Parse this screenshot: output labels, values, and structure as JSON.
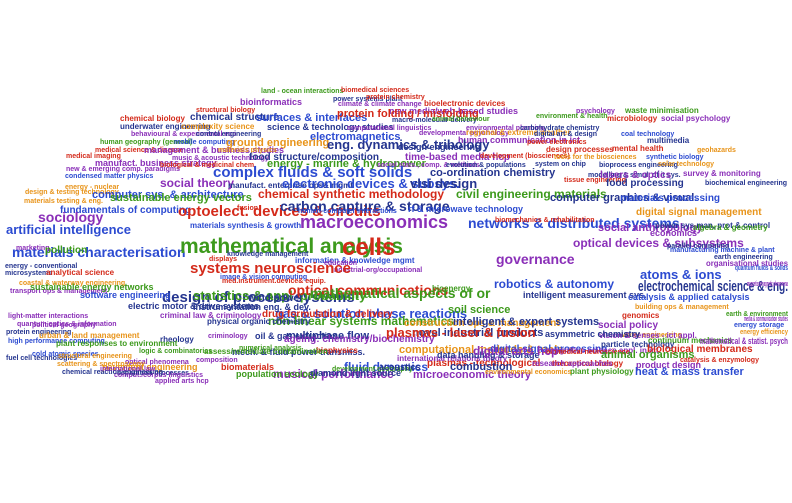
{
  "palette": {
    "blue": "#2c4bd1",
    "red": "#d42a1a",
    "purple": "#8a2fb8",
    "green": "#3d9a1c",
    "orange": "#e8941a",
    "navy": "#25358f"
  },
  "words": [
    {
      "text": "land - ocean interactions",
      "color": "green"
    },
    {
      "text": "power systems plant",
      "color": "navy"
    },
    {
      "text": "biomedical sciences",
      "color": "red"
    },
    {
      "text": "protein chemistry",
      "color": "red"
    },
    {
      "text": "bioinformatics",
      "color": "purple"
    },
    {
      "text": "climate & climate change",
      "color": "purple"
    },
    {
      "text": "bioelectronic devices",
      "color": "red"
    },
    {
      "text": "structural biology",
      "color": "red"
    },
    {
      "text": "new media/web-based studies",
      "color": "purple"
    },
    {
      "text": "psychology",
      "color": "purple"
    },
    {
      "text": "waste minimisation",
      "color": "green"
    },
    {
      "text": "chemical biology",
      "color": "red"
    },
    {
      "text": "chemical structure",
      "color": "navy"
    },
    {
      "text": "surfaces & interfaces",
      "color": "blue"
    },
    {
      "text": "protein folding / misfolding",
      "color": "red"
    },
    {
      "text": "macro-molecular delivery",
      "color": "navy"
    },
    {
      "text": "animal behaviour",
      "color": "green"
    },
    {
      "text": "environment & health",
      "color": "green"
    },
    {
      "text": "microbiology",
      "color": "red"
    },
    {
      "text": "social psychology",
      "color": "purple"
    },
    {
      "text": "underwater engineering",
      "color": "navy"
    },
    {
      "text": "complexity science",
      "color": "orange"
    },
    {
      "text": "science & technology studies",
      "color": "navy"
    },
    {
      "text": "computational linguistics",
      "color": "purple"
    },
    {
      "text": "environmental planning",
      "color": "purple"
    },
    {
      "text": "carbohydrate chemistry",
      "color": "navy"
    },
    {
      "text": "behavioural & experimental eco",
      "color": "purple"
    },
    {
      "text": "control engineering",
      "color": "navy"
    },
    {
      "text": "electromagnetics",
      "color": "blue"
    },
    {
      "text": "developmental psychology",
      "color": "purple"
    },
    {
      "text": "regional & extreme weather",
      "color": "orange"
    },
    {
      "text": "digital art & design",
      "color": "navy"
    },
    {
      "text": "coal technology",
      "color": "blue"
    },
    {
      "text": "human geography (general)",
      "color": "green"
    },
    {
      "text": "mobile computing",
      "color": "blue"
    },
    {
      "text": "ground engineering",
      "color": "orange"
    },
    {
      "text": "human communication in ict",
      "color": "purple"
    },
    {
      "text": "power electronics",
      "color": "red"
    },
    {
      "text": "multimedia",
      "color": "navy"
    },
    {
      "text": "medical science & disease",
      "color": "red"
    },
    {
      "text": "management & business studies",
      "color": "purple"
    },
    {
      "text": "materials physics",
      "color": "orange"
    },
    {
      "text": "design engineering",
      "color": "navy"
    },
    {
      "text": "design processes",
      "color": "red"
    },
    {
      "text": "mental health",
      "color": "red"
    },
    {
      "text": "geohazards",
      "color": "orange"
    },
    {
      "text": "medical imaging",
      "color": "red"
    },
    {
      "text": "eng. dynamics & tribology",
      "color": "navy"
    },
    {
      "text": "time-based media hcp",
      "color": "purple"
    },
    {
      "text": "development (biosciences)",
      "color": "red"
    },
    {
      "text": "tools for the biosciences",
      "color": "orange"
    },
    {
      "text": "synthetic biology",
      "color": "blue"
    },
    {
      "text": "manufact. business strategy",
      "color": "purple"
    },
    {
      "text": "music & acoustic technology",
      "color": "purple"
    },
    {
      "text": "food structure/composition",
      "color": "navy"
    },
    {
      "text": "new & emerging comp. paradigms",
      "color": "purple"
    },
    {
      "text": "biological & medicinal chem.",
      "color": "red"
    },
    {
      "text": "energy - marine & hydropower",
      "color": "green"
    },
    {
      "text": "social stats., comp. & methods",
      "color": "purple"
    },
    {
      "text": "evolution & populations",
      "color": "navy"
    },
    {
      "text": "system on chip",
      "color": "navy"
    },
    {
      "text": "bioprocess engineering",
      "color": "navy"
    },
    {
      "text": "solar technology",
      "color": "orange"
    },
    {
      "text": "condensed matter physics",
      "color": "blue"
    },
    {
      "text": "complex fluids & soft solids",
      "color": "blue"
    },
    {
      "text": "co-ordination chemistry",
      "color": "navy"
    },
    {
      "text": "modelling & simul. of it sys.",
      "color": "navy"
    },
    {
      "text": "energy - nuclear",
      "color": "orange"
    },
    {
      "text": "social theory",
      "color": "purple"
    },
    {
      "text": "manufact. enterprise ops& mgmt",
      "color": "navy"
    },
    {
      "text": "electronic devices & subsys.",
      "color": "blue"
    },
    {
      "text": "vlsi design",
      "color": "navy"
    },
    {
      "text": "tissue engineering",
      "color": "red"
    },
    {
      "text": "lasers & optics",
      "color": "purple"
    },
    {
      "text": "survey & monitoring",
      "color": "purple"
    },
    {
      "text": "design & testing technology",
      "color": "orange"
    },
    {
      "text": "computer sys. & architecture",
      "color": "blue"
    },
    {
      "text": "chemical synthetic methodology",
      "color": "red"
    },
    {
      "text": "civil engineering materials",
      "color": "green"
    },
    {
      "text": "food processing",
      "color": "navy"
    },
    {
      "text": "biochemical engineering",
      "color": "navy"
    },
    {
      "text": "materials testing & eng.",
      "color": "orange"
    },
    {
      "text": "sustainable energy vectors",
      "color": "green"
    },
    {
      "text": "computer graphics & visual.",
      "color": "navy"
    },
    {
      "text": "materials processing",
      "color": "blue"
    },
    {
      "text": "fundamentals of computing",
      "color": "blue"
    },
    {
      "text": "optoelect. devices & circuits",
      "color": "red"
    },
    {
      "text": "carbon capture & storage",
      "color": "navy"
    },
    {
      "text": "rf & microwave technology",
      "color": "blue"
    },
    {
      "text": "digital signal management",
      "color": "orange"
    },
    {
      "text": "sociology",
      "color": "purple"
    },
    {
      "text": "fusion",
      "color": "red"
    },
    {
      "text": "materials synthesis & growth",
      "color": "blue"
    },
    {
      "text": "human-computer interactions",
      "color": "blue"
    },
    {
      "text": "macroeconomics",
      "color": "purple"
    },
    {
      "text": "networks & distributed systems",
      "color": "blue"
    },
    {
      "text": "biomechanics & rehabilitation",
      "color": "red"
    },
    {
      "text": "social anthropology",
      "color": "purple"
    },
    {
      "text": "power sys man, prot & control",
      "color": "navy"
    },
    {
      "text": "algebra & geometry",
      "color": "green"
    },
    {
      "text": "artificial intelligence",
      "color": "blue"
    },
    {
      "text": "economics",
      "color": "purple"
    },
    {
      "text": "materials characterisation",
      "color": "blue"
    },
    {
      "text": "mathematical analysis",
      "color": "green"
    },
    {
      "text": "knowledge management",
      "color": "navy"
    },
    {
      "text": "cells",
      "color": "red"
    },
    {
      "text": "optical devices & subsystems",
      "color": "purple"
    },
    {
      "text": "parallel computing",
      "color": "navy"
    },
    {
      "text": "marketing",
      "color": "purple"
    },
    {
      "text": "pollution",
      "color": "green"
    },
    {
      "text": "displays",
      "color": "red"
    },
    {
      "text": "information & knowledge mgmt",
      "color": "blue"
    },
    {
      "text": "education",
      "color": "purple"
    },
    {
      "text": "industrial-org/occupational",
      "color": "purple"
    },
    {
      "text": "governance",
      "color": "purple"
    },
    {
      "text": "manufacturing machine & plant",
      "color": "blue"
    },
    {
      "text": "energy - conventional",
      "color": "navy"
    },
    {
      "text": "organisational studies",
      "color": "purple"
    },
    {
      "text": "microsystems",
      "color": "navy"
    },
    {
      "text": "earth engineering",
      "color": "navy"
    },
    {
      "text": "quantum fluids & solids",
      "color": "blue"
    },
    {
      "text": "analytical science",
      "color": "red"
    },
    {
      "text": "systems neuroscience",
      "color": "red"
    },
    {
      "text": "image & vision computing",
      "color": "blue"
    },
    {
      "text": "robotics & autonomy",
      "color": "blue"
    },
    {
      "text": "atoms & ions",
      "color": "blue"
    },
    {
      "text": "coastal & waterway engineering",
      "color": "orange"
    },
    {
      "text": "design of process systems",
      "color": "navy"
    },
    {
      "text": "med.instrument.device& equip.",
      "color": "red"
    },
    {
      "text": "transport ops & management",
      "color": "purple"
    },
    {
      "text": "sustainable energy networks",
      "color": "green"
    },
    {
      "text": "statistics & appl. probability",
      "color": "green"
    },
    {
      "text": "optical communications",
      "color": "red"
    },
    {
      "text": "software engineering",
      "color": "blue"
    },
    {
      "text": "wind power",
      "color": "navy"
    },
    {
      "text": "gas & solution phase reactions",
      "color": "blue"
    },
    {
      "text": "mathematical aspects of or",
      "color": "green"
    },
    {
      "text": "intelligent measurement sys.",
      "color": "navy"
    },
    {
      "text": "electrochemical science & eng.",
      "color": "navy"
    },
    {
      "text": "magnetism/magnetic phenomena",
      "color": "purple"
    },
    {
      "text": "bioenergy",
      "color": "green"
    },
    {
      "text": "catalysis & applied catalysis",
      "color": "blue"
    },
    {
      "text": "light-matter interactions",
      "color": "purple"
    },
    {
      "text": "criminal law & criminology",
      "color": "purple"
    },
    {
      "text": "drug formulation & delivery",
      "color": "red"
    },
    {
      "text": "soil science",
      "color": "green"
    },
    {
      "text": "genomics",
      "color": "red"
    },
    {
      "text": "earth & environment",
      "color": "green"
    },
    {
      "text": "protein engineering",
      "color": "navy"
    },
    {
      "text": "political geography",
      "color": "purple"
    },
    {
      "text": "electric motor & drive systems",
      "color": "navy"
    },
    {
      "text": "instrumentation eng. & dev.",
      "color": "navy"
    },
    {
      "text": "non-linear systems mathematics",
      "color": "green"
    },
    {
      "text": "construction ops & management",
      "color": "orange"
    },
    {
      "text": "intelligent & expert systems",
      "color": "navy"
    },
    {
      "text": "social policy",
      "color": "purple"
    },
    {
      "text": "water engineering",
      "color": "orange"
    },
    {
      "text": "building ops & management",
      "color": "orange"
    },
    {
      "text": "quantum optics & information",
      "color": "purple"
    },
    {
      "text": "urban & land management",
      "color": "orange"
    },
    {
      "text": "criminology",
      "color": "purple"
    },
    {
      "text": "physical organic chemistry",
      "color": "navy"
    },
    {
      "text": "multiphase flow",
      "color": "navy"
    },
    {
      "text": "novel industrial products",
      "color": "navy"
    },
    {
      "text": "vision & senses - ict appl.",
      "color": "purple"
    },
    {
      "text": "energy storage",
      "color": "blue"
    },
    {
      "text": "energy efficiency",
      "color": "orange"
    },
    {
      "text": "high performance computing",
      "color": "blue"
    },
    {
      "text": "rheology",
      "color": "navy"
    },
    {
      "text": "oil & gas extraction",
      "color": "navy"
    },
    {
      "text": "ageing: chemistry/biochemistry",
      "color": "purple"
    },
    {
      "text": "plasmas - laser & fusion",
      "color": "red"
    },
    {
      "text": "asymmetric chemistry",
      "color": "navy"
    },
    {
      "text": "continuum mechanics",
      "color": "green"
    },
    {
      "text": "mathematical & statist. psych",
      "color": "purple"
    },
    {
      "text": "media & communication studies",
      "color": "purple"
    },
    {
      "text": "fuel cell technologies",
      "color": "navy"
    },
    {
      "text": "plant responses to environment",
      "color": "green"
    },
    {
      "text": "logic & combinatorics",
      "color": "green"
    },
    {
      "text": "mech. & fluid power transmiss.",
      "color": "navy"
    },
    {
      "text": "biophysics",
      "color": "red"
    },
    {
      "text": "computational methods & tools",
      "color": "orange"
    },
    {
      "text": "digital signal processing",
      "color": "blue"
    },
    {
      "text": "cognitive science appl. in ict",
      "color": "purple"
    },
    {
      "text": "particle technology",
      "color": "navy"
    },
    {
      "text": "biological membranes",
      "color": "red"
    },
    {
      "text": "assess/remediate contamination",
      "color": "green"
    },
    {
      "text": "numerical analysis",
      "color": "green"
    },
    {
      "text": "fluid dynamics",
      "color": "blue"
    },
    {
      "text": "plasmas - technological",
      "color": "red"
    },
    {
      "text": "theoretical biology",
      "color": "red"
    },
    {
      "text": "product design",
      "color": "purple"
    },
    {
      "text": "pavement engineering",
      "color": "orange"
    },
    {
      "text": "cold atomic species",
      "color": "blue"
    },
    {
      "text": "structural engineering",
      "color": "orange"
    },
    {
      "text": "composition",
      "color": "purple"
    },
    {
      "text": "international relations theory",
      "color": "purple"
    },
    {
      "text": "biomedical neuroscience",
      "color": "red"
    },
    {
      "text": "animal organisms",
      "color": "green"
    },
    {
      "text": "catalysis & enzymology",
      "color": "red"
    },
    {
      "text": "separation processes",
      "color": "navy"
    },
    {
      "text": "comput./corpus linguistics",
      "color": "purple"
    },
    {
      "text": "development geography",
      "color": "green"
    },
    {
      "text": "data handling & storage",
      "color": "navy"
    },
    {
      "text": "digital arts hcp",
      "color": "purple"
    },
    {
      "text": "plant physiology",
      "color": "green"
    },
    {
      "text": "optical phenomena",
      "color": "purple"
    },
    {
      "text": "scattering & spectroscopy",
      "color": "orange"
    },
    {
      "text": "biomaterials",
      "color": "red"
    },
    {
      "text": "musical performance",
      "color": "purple"
    },
    {
      "text": "acoustics",
      "color": "navy"
    },
    {
      "text": "combustion",
      "color": "navy"
    },
    {
      "text": "research approaches",
      "color": "purple"
    },
    {
      "text": "heat & mass transfer",
      "color": "blue"
    },
    {
      "text": "chemical reaction engineering",
      "color": "navy"
    },
    {
      "text": "international law",
      "color": "purple"
    },
    {
      "text": "applied arts hcp",
      "color": "purple"
    },
    {
      "text": "population ecology",
      "color": "green"
    },
    {
      "text": "diamond light source",
      "color": "navy"
    },
    {
      "text": "microeconomic theory",
      "color": "purple"
    },
    {
      "text": "environmental economics",
      "color": "orange"
    }
  ]
}
